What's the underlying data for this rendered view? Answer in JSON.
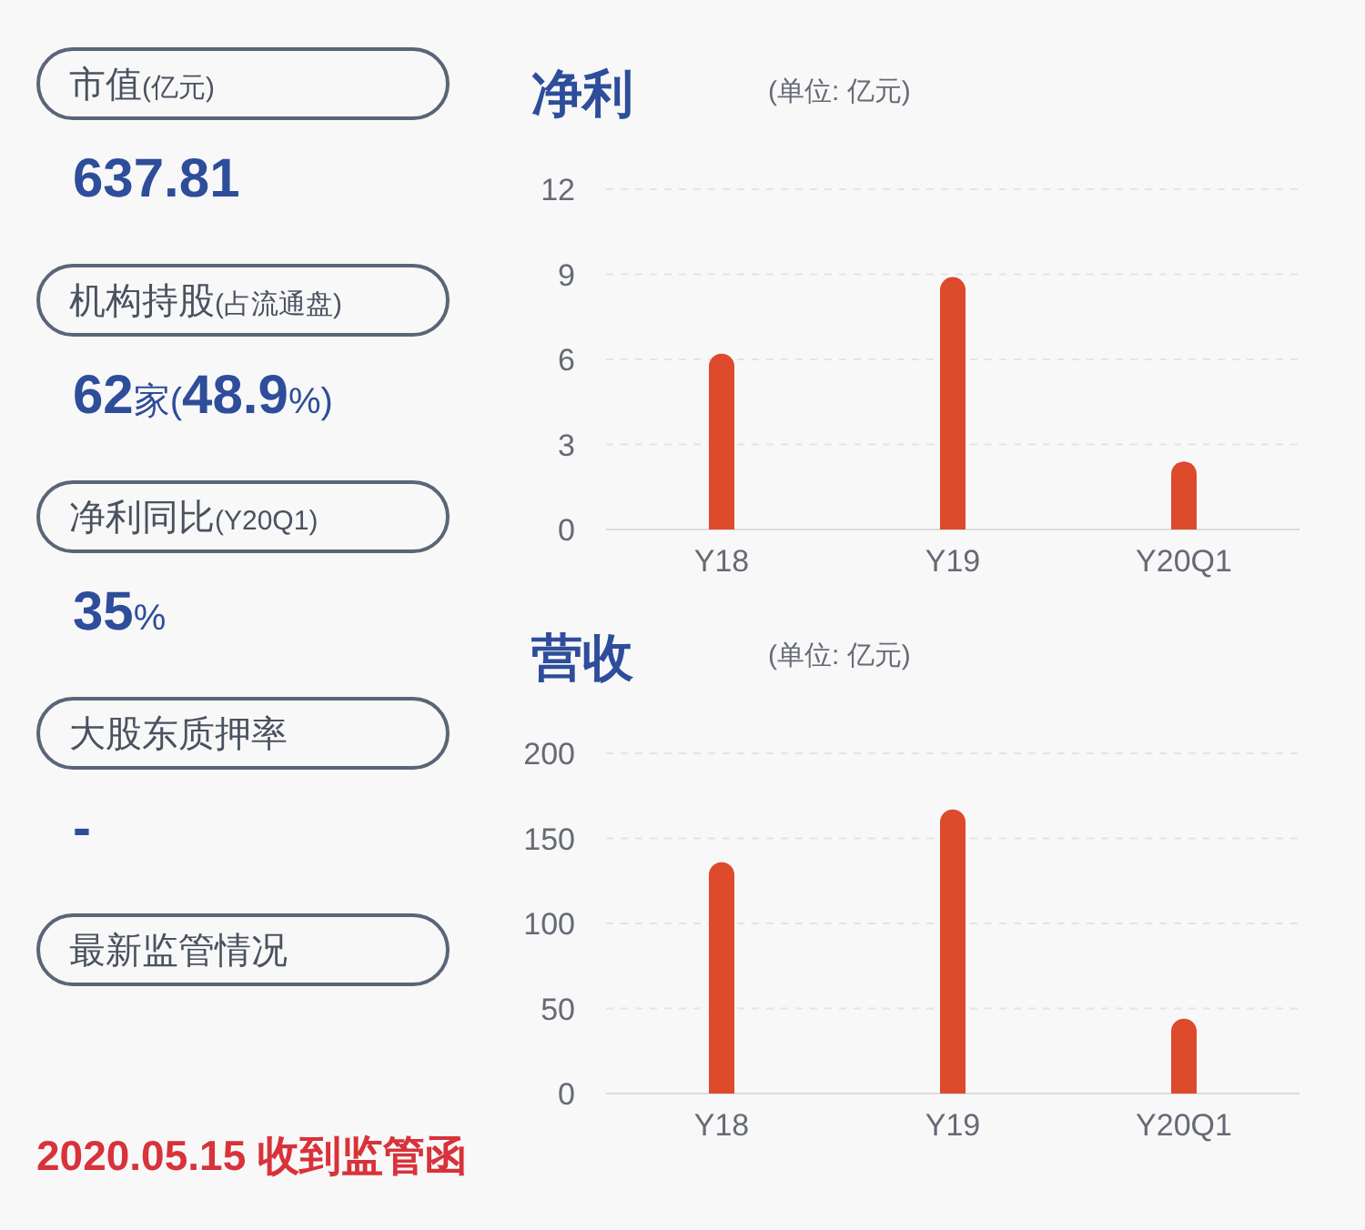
{
  "chart_data": [
    {
      "type": "other",
      "annotations": [
        "市值(亿元)",
        "637.81",
        "机构持股(占流通盘)",
        "62家(48.9%)",
        "净利同比(Y20Q1)",
        "35%",
        "大股东质押率",
        "-",
        "最新监管情况",
        null,
        "2020.05.15 收到监管函"
      ]
    },
    {
      "type": "bar",
      "title": "净利",
      "subtitle": "(单位: 亿元)",
      "categories": [
        "Y18",
        "Y19",
        "Y20Q1"
      ],
      "values": [
        6.2,
        8.9,
        2.4
      ],
      "color": "#de4a2c",
      "ylim": [
        0,
        12
      ],
      "yticks": [
        0,
        3,
        6,
        9,
        12
      ],
      "grid": "y"
    },
    {
      "type": "bar",
      "title": "营收",
      "subtitle": "(单位: 亿元)",
      "categories": [
        "Y18",
        "Y19",
        "Y20Q1"
      ],
      "values": [
        136,
        167,
        44
      ],
      "color": "#de4a2c",
      "ylim": [
        0,
        200
      ],
      "yticks": [
        0,
        50,
        100,
        150,
        200
      ],
      "grid": "y"
    }
  ]
}
